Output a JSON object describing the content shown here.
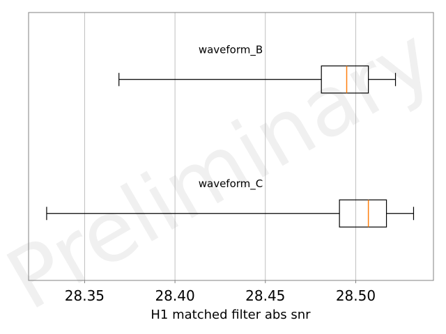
{
  "chart_data": {
    "type": "boxplot",
    "orientation": "horizontal",
    "xlabel": "H1 matched filter abs snr",
    "ylabel": "",
    "title": "",
    "xlim": [
      28.319,
      28.543
    ],
    "xticks": [
      28.35,
      28.4,
      28.45,
      28.5
    ],
    "xtick_labels": [
      "28.35",
      "28.40",
      "28.45",
      "28.50"
    ],
    "grid": "vertical",
    "watermark": "Preliminary",
    "series": [
      {
        "name": "waveform_B",
        "whisker_low": 28.369,
        "q1": 28.481,
        "median": 28.495,
        "q3": 28.507,
        "whisker_high": 28.522
      },
      {
        "name": "waveform_C",
        "whisker_low": 28.329,
        "q1": 28.491,
        "median": 28.507,
        "q3": 28.517,
        "whisker_high": 28.532
      }
    ],
    "colors": {
      "box": "#000000",
      "median": "#ff7f0e",
      "grid": "#b0b0b0",
      "frame": "#808080"
    }
  }
}
